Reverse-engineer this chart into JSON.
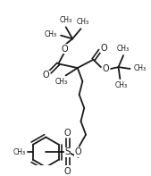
{
  "background_color": "#ffffff",
  "line_color": "#1a1a1a",
  "line_width": 1.3,
  "figure_width": 1.69,
  "figure_height": 1.97,
  "dpi": 100,
  "xlim": [
    0,
    169
  ],
  "ylim": [
    0,
    197
  ]
}
